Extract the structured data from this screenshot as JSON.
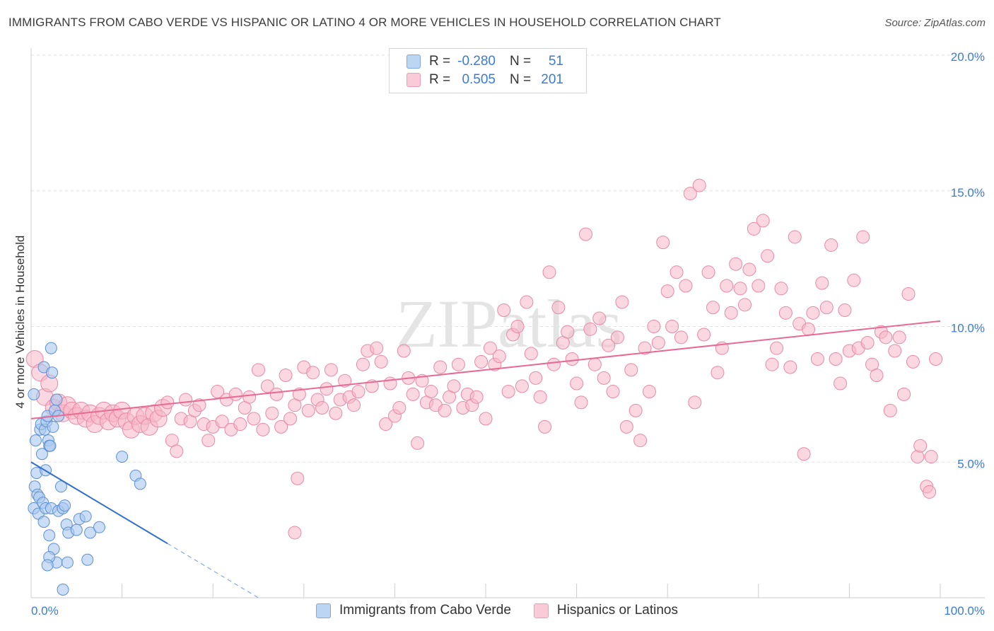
{
  "header": {
    "title": "IMMIGRANTS FROM CABO VERDE VS HISPANIC OR LATINO 4 OR MORE VEHICLES IN HOUSEHOLD CORRELATION CHART",
    "source": "Source: ZipAtlas.com"
  },
  "watermark": "ZIPatlas",
  "legend": {
    "rows": [
      {
        "r_label": "R =",
        "r_value": "-0.280",
        "n_label": "N =",
        "n_value": "51",
        "color": "#a8c8ef"
      },
      {
        "r_label": "R =",
        "r_value": "0.505",
        "n_label": "N =",
        "n_value": "201",
        "color": "#f7b6c9"
      }
    ]
  },
  "bottom_legend": {
    "items": [
      {
        "label": "Immigrants from Cabo Verde",
        "color": "#a8c8ef"
      },
      {
        "label": "Hispanics or Latinos",
        "color": "#f7b6c9"
      }
    ]
  },
  "chart_data": {
    "type": "scatter",
    "title": "IMMIGRANTS FROM CABO VERDE VS HISPANIC OR LATINO 4 OR MORE VEHICLES IN HOUSEHOLD CORRELATION CHART",
    "xlabel": "",
    "ylabel": "4 or more Vehicles in Household",
    "xlim": [
      0,
      100
    ],
    "ylim": [
      0,
      20
    ],
    "x_tick_labels": {
      "left": "0.0%",
      "right": "100.0%"
    },
    "y_ticks": [
      5,
      10,
      15,
      20
    ],
    "y_tick_labels": [
      "5.0%",
      "10.0%",
      "15.0%",
      "20.0%"
    ],
    "grid": true,
    "colors": {
      "blue_fill": "#a8c8ef",
      "blue_stroke": "#5b8fd6",
      "blue_line": "#2f6fd0",
      "pink_fill": "#f7b6c9",
      "pink_stroke": "#e889a6",
      "pink_line": "#e86a94",
      "tick_label": "#3a7bd5",
      "grid": "#e0e0e0",
      "axis": "#cccccc"
    },
    "series": [
      {
        "name": "Immigrants from Cabo Verde",
        "r": -0.28,
        "n": 51,
        "trend": {
          "x0": 0,
          "y0": 5.0,
          "x1": 15,
          "y1": 2.0,
          "dash_to_x": 25
        },
        "points": [
          [
            0.3,
            7.5
          ],
          [
            0.5,
            5.8
          ],
          [
            0.6,
            4.6
          ],
          [
            0.4,
            4.1
          ],
          [
            0.7,
            3.8
          ],
          [
            0.3,
            3.3
          ],
          [
            0.8,
            3.1
          ],
          [
            1.0,
            6.2
          ],
          [
            1.1,
            6.4
          ],
          [
            1.2,
            5.3
          ],
          [
            1.4,
            8.5
          ],
          [
            1.5,
            6.2
          ],
          [
            1.7,
            6.5
          ],
          [
            1.6,
            4.7
          ],
          [
            1.8,
            6.7
          ],
          [
            1.9,
            5.8
          ],
          [
            2.0,
            5.6
          ],
          [
            2.1,
            5.6
          ],
          [
            2.2,
            9.2
          ],
          [
            2.3,
            8.3
          ],
          [
            2.4,
            6.3
          ],
          [
            2.6,
            6.9
          ],
          [
            2.8,
            7.3
          ],
          [
            3.0,
            6.7
          ],
          [
            0.9,
            3.7
          ],
          [
            1.3,
            3.5
          ],
          [
            1.4,
            2.8
          ],
          [
            1.6,
            3.3
          ],
          [
            2.0,
            2.3
          ],
          [
            2.2,
            3.3
          ],
          [
            2.5,
            1.8
          ],
          [
            2.8,
            1.3
          ],
          [
            3.0,
            3.2
          ],
          [
            3.3,
            4.1
          ],
          [
            3.5,
            3.3
          ],
          [
            3.7,
            3.4
          ],
          [
            3.9,
            2.7
          ],
          [
            4.1,
            2.4
          ],
          [
            5.0,
            2.5
          ],
          [
            5.3,
            2.9
          ],
          [
            6.0,
            3.0
          ],
          [
            6.5,
            2.4
          ],
          [
            7.5,
            2.6
          ],
          [
            10.0,
            5.2
          ],
          [
            11.5,
            4.5
          ],
          [
            12.0,
            4.2
          ],
          [
            2.0,
            1.5
          ],
          [
            4.0,
            1.3
          ],
          [
            6.2,
            1.4
          ],
          [
            3.5,
            0.3
          ],
          [
            1.8,
            1.2
          ]
        ]
      },
      {
        "name": "Hispanics or Latinos",
        "r": 0.505,
        "n": 201,
        "trend": {
          "x0": 0,
          "y0": 6.6,
          "x1": 100,
          "y1": 10.2
        },
        "points": [
          [
            0.4,
            8.8
          ],
          [
            1.0,
            8.3
          ],
          [
            1.5,
            7.4
          ],
          [
            2.0,
            7.9
          ],
          [
            2.5,
            7.0
          ],
          [
            3.0,
            7.2
          ],
          [
            3.5,
            6.8
          ],
          [
            4.0,
            7.1
          ],
          [
            4.5,
            6.9
          ],
          [
            5.0,
            6.7
          ],
          [
            5.5,
            6.9
          ],
          [
            6.0,
            6.6
          ],
          [
            6.5,
            6.8
          ],
          [
            7.0,
            6.4
          ],
          [
            7.5,
            6.7
          ],
          [
            8.0,
            6.9
          ],
          [
            8.5,
            6.5
          ],
          [
            9.0,
            6.8
          ],
          [
            9.5,
            6.6
          ],
          [
            10.0,
            6.9
          ],
          [
            10.5,
            6.5
          ],
          [
            11.0,
            6.2
          ],
          [
            11.5,
            6.7
          ],
          [
            12.0,
            6.4
          ],
          [
            12.5,
            6.7
          ],
          [
            13.0,
            6.3
          ],
          [
            13.5,
            6.8
          ],
          [
            14.0,
            6.6
          ],
          [
            14.5,
            7.0
          ],
          [
            15.0,
            7.2
          ],
          [
            15.5,
            5.8
          ],
          [
            16.0,
            5.4
          ],
          [
            16.5,
            6.6
          ],
          [
            17.0,
            7.3
          ],
          [
            17.5,
            6.5
          ],
          [
            18.0,
            6.9
          ],
          [
            18.5,
            7.1
          ],
          [
            19.0,
            6.4
          ],
          [
            19.5,
            5.8
          ],
          [
            20.0,
            6.3
          ],
          [
            20.5,
            7.6
          ],
          [
            21.0,
            6.5
          ],
          [
            21.5,
            7.3
          ],
          [
            22.0,
            6.2
          ],
          [
            22.5,
            7.5
          ],
          [
            23.0,
            6.4
          ],
          [
            23.5,
            7.0
          ],
          [
            24.0,
            7.4
          ],
          [
            24.5,
            6.6
          ],
          [
            25.0,
            8.4
          ],
          [
            25.5,
            6.2
          ],
          [
            26.0,
            7.8
          ],
          [
            26.5,
            6.8
          ],
          [
            27.0,
            7.5
          ],
          [
            27.5,
            6.3
          ],
          [
            28.0,
            8.2
          ],
          [
            28.5,
            6.6
          ],
          [
            29.0,
            7.1
          ],
          [
            29.5,
            7.5
          ],
          [
            30.0,
            8.5
          ],
          [
            30.5,
            6.9
          ],
          [
            31.0,
            8.3
          ],
          [
            31.5,
            7.3
          ],
          [
            32.0,
            7.0
          ],
          [
            32.5,
            7.7
          ],
          [
            33.0,
            8.4
          ],
          [
            33.5,
            6.8
          ],
          [
            34.0,
            7.3
          ],
          [
            34.5,
            8.0
          ],
          [
            35.0,
            7.4
          ],
          [
            35.5,
            7.1
          ],
          [
            36.0,
            7.6
          ],
          [
            36.5,
            8.6
          ],
          [
            37.0,
            9.1
          ],
          [
            37.5,
            7.8
          ],
          [
            38.0,
            9.2
          ],
          [
            38.5,
            8.7
          ],
          [
            39.0,
            6.4
          ],
          [
            39.5,
            7.9
          ],
          [
            40.0,
            6.7
          ],
          [
            40.5,
            7.0
          ],
          [
            41.0,
            9.1
          ],
          [
            41.5,
            8.1
          ],
          [
            42.0,
            7.5
          ],
          [
            42.5,
            5.7
          ],
          [
            43.0,
            8.0
          ],
          [
            43.5,
            7.2
          ],
          [
            44.0,
            7.6
          ],
          [
            44.5,
            7.1
          ],
          [
            45.0,
            8.5
          ],
          [
            45.5,
            6.9
          ],
          [
            46.0,
            7.4
          ],
          [
            46.5,
            7.8
          ],
          [
            47.0,
            8.6
          ],
          [
            47.5,
            7.0
          ],
          [
            48.0,
            7.5
          ],
          [
            48.5,
            7.1
          ],
          [
            49.0,
            7.4
          ],
          [
            49.5,
            8.7
          ],
          [
            50.0,
            6.6
          ],
          [
            50.5,
            9.2
          ],
          [
            51.0,
            8.6
          ],
          [
            51.5,
            8.9
          ],
          [
            52.0,
            10.6
          ],
          [
            52.5,
            7.6
          ],
          [
            53.0,
            9.7
          ],
          [
            53.5,
            10.0
          ],
          [
            54.0,
            7.8
          ],
          [
            54.5,
            10.9
          ],
          [
            55.0,
            9.0
          ],
          [
            55.5,
            8.1
          ],
          [
            56.0,
            7.4
          ],
          [
            56.5,
            6.3
          ],
          [
            57.0,
            12.0
          ],
          [
            57.5,
            8.6
          ],
          [
            58.0,
            10.7
          ],
          [
            58.5,
            9.4
          ],
          [
            59.0,
            9.8
          ],
          [
            59.5,
            8.8
          ],
          [
            60.0,
            7.9
          ],
          [
            60.5,
            7.2
          ],
          [
            61.0,
            13.4
          ],
          [
            61.5,
            9.9
          ],
          [
            62.0,
            8.6
          ],
          [
            62.5,
            10.3
          ],
          [
            63.0,
            8.1
          ],
          [
            63.5,
            9.3
          ],
          [
            64.0,
            7.6
          ],
          [
            64.5,
            9.6
          ],
          [
            65.0,
            10.9
          ],
          [
            65.5,
            6.3
          ],
          [
            66.0,
            8.4
          ],
          [
            66.5,
            6.9
          ],
          [
            67.0,
            5.8
          ],
          [
            67.5,
            9.2
          ],
          [
            68.0,
            7.6
          ],
          [
            68.5,
            10.0
          ],
          [
            69.0,
            9.4
          ],
          [
            69.5,
            13.1
          ],
          [
            70.0,
            11.3
          ],
          [
            70.5,
            10.0
          ],
          [
            71.0,
            12.0
          ],
          [
            71.5,
            9.6
          ],
          [
            72.0,
            11.5
          ],
          [
            72.5,
            14.9
          ],
          [
            73.0,
            7.2
          ],
          [
            73.5,
            15.2
          ],
          [
            74.0,
            9.7
          ],
          [
            74.5,
            12.0
          ],
          [
            75.0,
            10.7
          ],
          [
            75.5,
            8.3
          ],
          [
            76.0,
            9.2
          ],
          [
            76.5,
            11.5
          ],
          [
            77.0,
            10.5
          ],
          [
            77.5,
            12.3
          ],
          [
            78.0,
            11.4
          ],
          [
            78.5,
            10.8
          ],
          [
            79.0,
            12.1
          ],
          [
            79.5,
            13.6
          ],
          [
            80.0,
            11.5
          ],
          [
            80.5,
            13.9
          ],
          [
            81.0,
            12.6
          ],
          [
            81.5,
            8.6
          ],
          [
            82.0,
            9.2
          ],
          [
            82.5,
            11.4
          ],
          [
            83.0,
            10.5
          ],
          [
            83.5,
            8.5
          ],
          [
            84.0,
            13.3
          ],
          [
            84.5,
            10.1
          ],
          [
            85.0,
            5.3
          ],
          [
            85.5,
            9.9
          ],
          [
            86.0,
            10.5
          ],
          [
            86.5,
            8.8
          ],
          [
            87.0,
            11.6
          ],
          [
            87.5,
            10.7
          ],
          [
            88.0,
            13.0
          ],
          [
            88.5,
            8.8
          ],
          [
            89.0,
            7.9
          ],
          [
            89.5,
            10.6
          ],
          [
            90.0,
            9.1
          ],
          [
            90.5,
            11.7
          ],
          [
            91.0,
            9.2
          ],
          [
            91.5,
            13.3
          ],
          [
            92.0,
            9.4
          ],
          [
            92.5,
            8.6
          ],
          [
            93.0,
            8.2
          ],
          [
            93.5,
            9.8
          ],
          [
            94.0,
            9.6
          ],
          [
            94.5,
            6.9
          ],
          [
            95.0,
            9.1
          ],
          [
            95.5,
            9.6
          ],
          [
            96.0,
            7.5
          ],
          [
            96.5,
            11.2
          ],
          [
            97.0,
            8.7
          ],
          [
            97.5,
            5.2
          ],
          [
            97.8,
            5.6
          ],
          [
            98.5,
            4.1
          ],
          [
            98.8,
            3.9
          ],
          [
            99.0,
            5.2
          ],
          [
            99.5,
            8.8
          ],
          [
            29.3,
            4.4
          ],
          [
            29.0,
            2.4
          ]
        ]
      }
    ]
  }
}
